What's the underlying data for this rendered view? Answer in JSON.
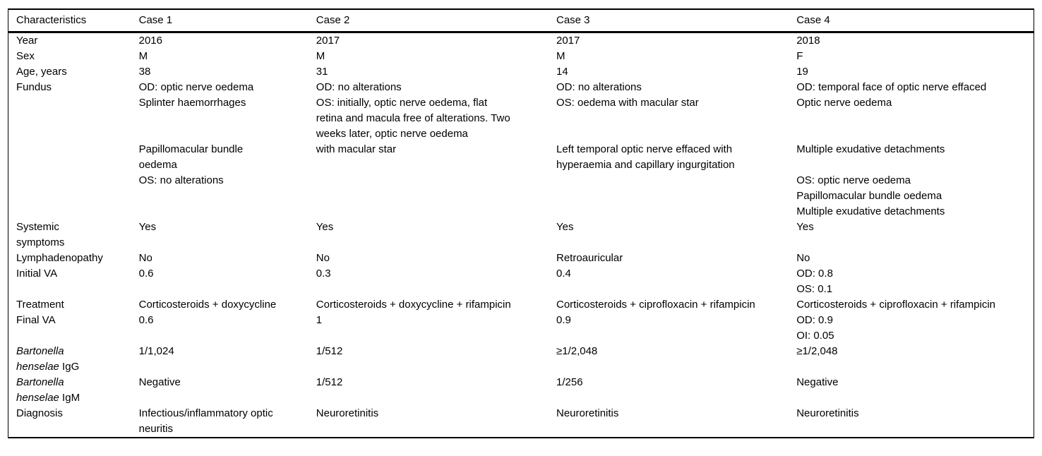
{
  "colors": {
    "text": "#000000",
    "background": "#ffffff",
    "border": "#000000"
  },
  "table": {
    "columns": [
      "Characteristics",
      "Case 1",
      "Case 2",
      "Case 3",
      "Case 4"
    ],
    "rows": [
      {
        "name": "year",
        "label": [
          "Year"
        ],
        "cells": [
          [
            "2016"
          ],
          [
            "2017"
          ],
          [
            "2017"
          ],
          [
            "2018"
          ]
        ]
      },
      {
        "name": "sex",
        "label": [
          "Sex"
        ],
        "cells": [
          [
            "M"
          ],
          [
            "M"
          ],
          [
            "M"
          ],
          [
            "F"
          ]
        ]
      },
      {
        "name": "age-years",
        "label": [
          "Age, years"
        ],
        "cells": [
          [
            "38"
          ],
          [
            "31"
          ],
          [
            "14"
          ],
          [
            "19"
          ]
        ]
      },
      {
        "name": "fundus",
        "label": [
          "Fundus"
        ],
        "cells": [
          [
            "OD: optic nerve oedema",
            "Splinter haemorrhages"
          ],
          [
            "OD: no alterations",
            "OS: initially, optic nerve oedema, flat",
            "retina and macula free of alterations. Two",
            "weeks later, optic nerve oedema"
          ],
          [
            "OD: no alterations",
            "OS: oedema with macular star"
          ],
          [
            "OD: temporal face of optic nerve effaced",
            "Optic nerve oedema"
          ]
        ]
      },
      {
        "name": "fundus-continued",
        "label": [
          ""
        ],
        "cells": [
          [
            "Papillomacular bundle",
            "oedema",
            "OS: no alterations"
          ],
          [
            "with macular star"
          ],
          [
            "Left temporal optic nerve effaced with",
            "hyperaemia and capillary ingurgitation"
          ],
          [
            "Multiple exudative detachments",
            "",
            "OS: optic nerve oedema",
            "Papillomacular bundle oedema",
            "Multiple exudative detachments"
          ]
        ]
      },
      {
        "name": "systemic-symptoms",
        "label": [
          "Systemic",
          "symptoms"
        ],
        "cells": [
          [
            "Yes"
          ],
          [
            "Yes"
          ],
          [
            "Yes"
          ],
          [
            "Yes"
          ]
        ]
      },
      {
        "name": "lymphadenopathy",
        "label": [
          "Lymphadenopathy"
        ],
        "cells": [
          [
            "No"
          ],
          [
            "No"
          ],
          [
            "Retroauricular"
          ],
          [
            "No"
          ]
        ]
      },
      {
        "name": "initial-va",
        "label": [
          "Initial VA"
        ],
        "cells": [
          [
            "0.6"
          ],
          [
            "0.3"
          ],
          [
            "0.4"
          ],
          [
            "OD: 0.8",
            "OS: 0.1"
          ]
        ]
      },
      {
        "name": "treatment",
        "label": [
          "Treatment"
        ],
        "cells": [
          [
            "Corticosteroids + doxycycline"
          ],
          [
            "Corticosteroids + doxycycline + rifampicin"
          ],
          [
            "Corticosteroids + ciprofloxacin + rifampicin"
          ],
          [
            "Corticosteroids + ciprofloxacin + rifampicin"
          ]
        ]
      },
      {
        "name": "final-va",
        "label": [
          "Final VA"
        ],
        "cells": [
          [
            "0.6"
          ],
          [
            "1"
          ],
          [
            "0.9"
          ],
          [
            "OD: 0.9",
            "OI: 0.05"
          ]
        ]
      },
      {
        "name": "bartonella-henselae-igg",
        "label": [
          "*Bartonella*",
          "*henselae* IgG"
        ],
        "cells": [
          [
            "1/1,024"
          ],
          [
            "1/512"
          ],
          [
            "≥1/2,048"
          ],
          [
            "≥1/2,048"
          ]
        ]
      },
      {
        "name": "bartonella-henselae-igm",
        "label": [
          "*Bartonella*",
          "*henselae* IgM"
        ],
        "cells": [
          [
            "Negative"
          ],
          [
            "1/512"
          ],
          [
            "1/256"
          ],
          [
            "Negative"
          ]
        ]
      },
      {
        "name": "diagnosis",
        "label": [
          "Diagnosis"
        ],
        "cells": [
          [
            "Infectious/inflammatory optic",
            "neuritis"
          ],
          [
            "Neuroretinitis"
          ],
          [
            "Neuroretinitis"
          ],
          [
            "Neuroretinitis"
          ]
        ]
      }
    ]
  }
}
